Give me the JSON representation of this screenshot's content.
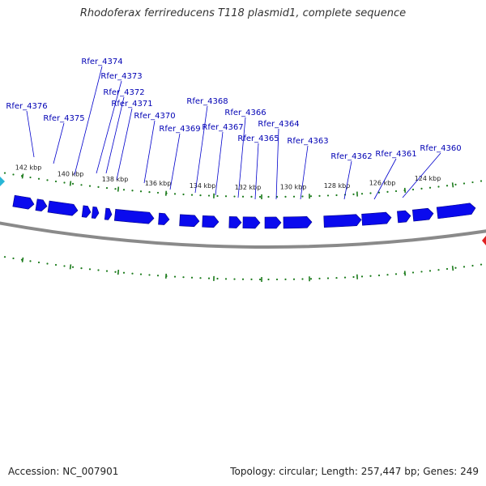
{
  "title": "Rhodoferax ferrireducens T118 plasmid1, complete sequence",
  "footer": {
    "accession_prefix": "Accession:",
    "accession": "NC_007901",
    "topology_prefix": "Topology:",
    "topology": "circular",
    "length_prefix": "Length:",
    "length": "257,447 bp",
    "genes_prefix": "Genes:",
    "genes": "249"
  },
  "colors": {
    "gene_fill": "#0a0aee",
    "gene_edge": "#000088",
    "backbone": "#8a8a8a",
    "tick": "#1a7a1a",
    "label": "#0000b4",
    "callout": "#0000cc",
    "left_marker": "#29b6d6",
    "right_marker": "#e02020"
  },
  "ticks": [
    {
      "label": "142 kbp"
    },
    {
      "label": "140 kbp"
    },
    {
      "label": "138 kbp"
    },
    {
      "label": "136 kbp"
    },
    {
      "label": "134 kbp"
    },
    {
      "label": "132 kbp"
    },
    {
      "label": "130 kbp"
    },
    {
      "label": "128 kbp"
    },
    {
      "label": "126 kbp"
    },
    {
      "label": "124 kbp"
    }
  ],
  "genes": [
    {
      "label": "Rfer_4376",
      "strand": "+"
    },
    {
      "label": "Rfer_4375",
      "strand": "+"
    },
    {
      "label": "Rfer_4374",
      "strand": "+"
    },
    {
      "label": "Rfer_4373",
      "strand": "+"
    },
    {
      "label": "Rfer_4372",
      "strand": "+"
    },
    {
      "label": "Rfer_4371",
      "strand": "+"
    },
    {
      "label": "Rfer_4370",
      "strand": "+"
    },
    {
      "label": "Rfer_4369",
      "strand": "+"
    },
    {
      "label": "Rfer_4368",
      "strand": "+"
    },
    {
      "label": "Rfer_4367",
      "strand": "+"
    },
    {
      "label": "Rfer_4366",
      "strand": "+"
    },
    {
      "label": "Rfer_4365",
      "strand": "+"
    },
    {
      "label": "Rfer_4364",
      "strand": "+"
    },
    {
      "label": "Rfer_4363",
      "strand": "+"
    },
    {
      "label": "Rfer_4362",
      "strand": "+"
    },
    {
      "label": "Rfer_4361",
      "strand": "+"
    },
    {
      "label": "Rfer_4360",
      "strand": "+"
    }
  ]
}
